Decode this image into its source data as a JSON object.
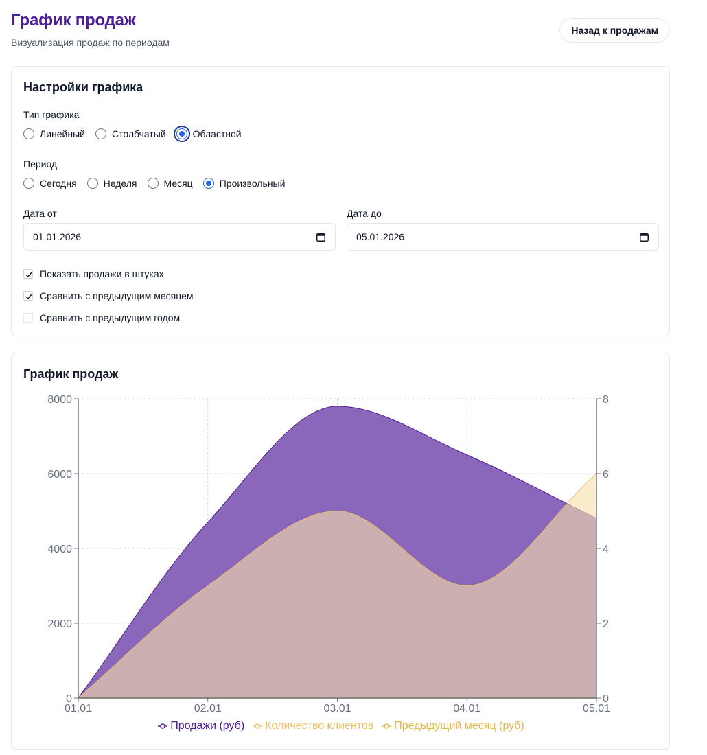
{
  "header": {
    "title": "График продаж",
    "subtitle": "Визуализация продаж по периодам",
    "back_label": "Назад к продажам"
  },
  "settings": {
    "title": "Настройки графика",
    "chart_type": {
      "label": "Тип графика",
      "options": [
        "Линейный",
        "Столбчатый",
        "Областной"
      ],
      "selected": "Областной"
    },
    "period": {
      "label": "Период",
      "options": [
        "Сегодня",
        "Неделя",
        "Месяц",
        "Произвольный"
      ],
      "selected": "Произвольный"
    },
    "date_from": {
      "label": "Дата от",
      "value": "01.01.2026",
      "icon": "calendar-icon"
    },
    "date_to": {
      "label": "Дата до",
      "value": "05.01.2026",
      "icon": "calendar-icon"
    },
    "checkboxes": [
      {
        "label": "Показать продажи в штуках",
        "checked": true
      },
      {
        "label": "Сравнить с предыдущим месяцем",
        "checked": true
      },
      {
        "label": "Сравнить с предыдущим годом",
        "checked": false
      }
    ]
  },
  "chart_card": {
    "title": "График продаж"
  },
  "colors": {
    "title": "#4c1d95",
    "sales": "#4c1d95",
    "sales_fill": "#8b67bb",
    "clients": "#f0c060",
    "clients_fill": "#f8dfaa",
    "prev_month": "#e8b84a",
    "grid": "#d1d5db",
    "radio": "#2563eb"
  },
  "chart_data": {
    "type": "area",
    "x": [
      "01.01",
      "02.01",
      "03.01",
      "04.01",
      "05.01"
    ],
    "series": [
      {
        "name": "Продажи (руб)",
        "axis": "left",
        "values": [
          0,
          4700,
          7800,
          6500,
          4800
        ]
      },
      {
        "name": "Количество клиентов",
        "axis": "right",
        "values": [
          0,
          3,
          5,
          3,
          6
        ]
      },
      {
        "name": "Предыдущий месяц (руб)",
        "axis": "left",
        "values": [
          0,
          0,
          0,
          0,
          0
        ]
      }
    ],
    "y_left": {
      "ylim": [
        0,
        8000
      ],
      "ticks": [
        0,
        2000,
        4000,
        6000,
        8000
      ]
    },
    "y_right": {
      "ylim": [
        0,
        8
      ],
      "ticks": [
        0,
        2,
        4,
        6,
        8
      ]
    },
    "grid": true,
    "legend": "bottom"
  }
}
